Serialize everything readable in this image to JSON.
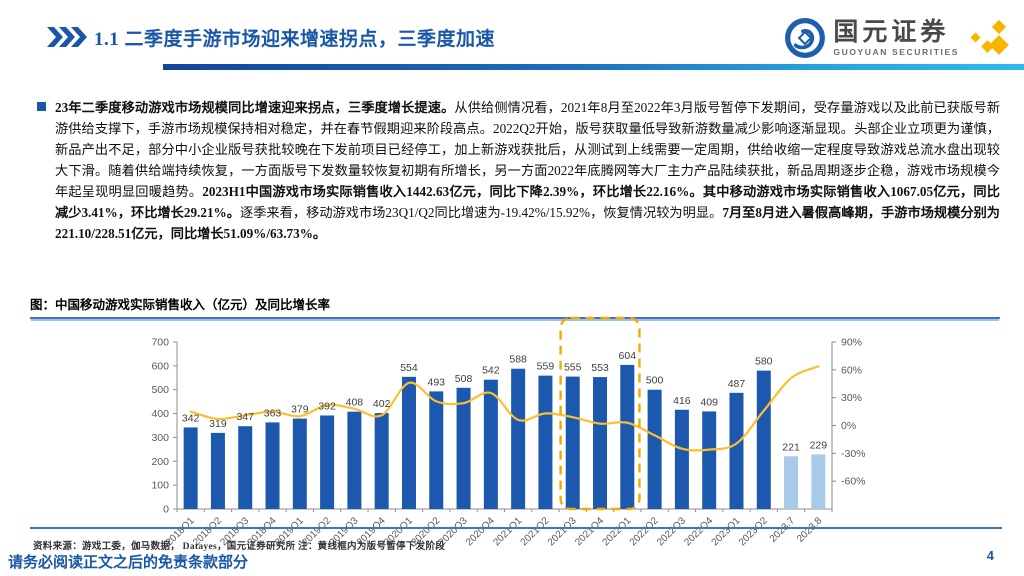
{
  "header": {
    "section_title": "1.1 二季度手游市场迎来增速拐点，三季度加速",
    "logo": {
      "cn": "国元证券",
      "en": "GUOYUAN SECURITIES"
    }
  },
  "body": {
    "paragraph_segments": [
      {
        "text": "23年二季度移动游戏市场规模同比增速迎来拐点，三季度增长提速。",
        "bold": true
      },
      {
        "text": "从供给侧情况看，2021年8月至2022年3月版号暂停下发期间，受存量游戏以及此前已获版号新游供给支撑下，手游市场规模保持相对稳定，并在春节假期迎来阶段高点。2022Q2开始，版号获取量低导致新游数量减少影响逐渐显现。头部企业立项更为谨慎，新品产出不足，部分中小企业版号获批较晚在下发前项目已经停工，加上新游戏获批后，从测试到上线需要一定周期，供给收缩一定程度导致游戏总流水盘出现较大下滑。随着供给端持续恢复，一方面版号下发数量较恢复初期有所增长，另一方面2022年底腾网等大厂主力产品陆续获批，新品周期逐步企稳，游戏市场规模今年起呈现明显回暖趋势。",
        "bold": false
      },
      {
        "text": "2023H1中国游戏市场实际销售收入1442.63亿元，同比下降2.39%，环比增长22.16%。其中移动游戏市场实际销售收入1067.05亿元，同比减少3.41%，环比增长29.21%。",
        "bold": true
      },
      {
        "text": "逐季来看，移动游戏市场23Q1/Q2同比增速为-19.42%/15.92%，恢复情况较为明显。",
        "bold": false
      },
      {
        "text": "7月至8月进入暑假高峰期，手游市场规模分别为221.10/228.51亿元，同比增长51.09%/63.73%。",
        "bold": true
      }
    ]
  },
  "chart": {
    "title": "图：中国移动游戏实际销售收入（亿元）及同比增长率"
  },
  "chart_data": {
    "type": "bar+line",
    "title": "中国移动游戏实际销售收入（亿元）及同比增长率",
    "categories": [
      "2018Q1",
      "2018Q2",
      "2018Q3",
      "2018Q4",
      "2019Q1",
      "2019Q2",
      "2019Q3",
      "2019Q4",
      "2020Q1",
      "2020Q2",
      "2020Q3",
      "2020Q4",
      "2021Q1",
      "2021Q2",
      "2021Q3",
      "2021Q4",
      "2022Q1",
      "2022Q2",
      "2022Q3",
      "2022Q4",
      "2023Q1",
      "2023Q2",
      "2023.7",
      "2023.8"
    ],
    "series": [
      {
        "name": "中国移动游戏实际销售收入（亿元）",
        "type": "bar",
        "values": [
          342,
          319,
          347,
          363,
          379,
          392,
          408,
          402,
          554,
          493,
          508,
          542,
          588,
          559,
          555,
          553,
          604,
          500,
          416,
          409,
          487,
          580,
          221,
          229
        ],
        "light_categories": [
          "2023.7",
          "2023.8"
        ]
      },
      {
        "name": "同比增长率",
        "type": "line",
        "values": [
          15,
          7,
          11,
          15,
          10,
          22,
          18,
          11,
          46,
          26,
          24,
          35,
          6,
          13,
          9,
          2,
          3,
          -10.6,
          -25,
          -26,
          -19.42,
          15.92,
          51.09,
          63.73
        ]
      }
    ],
    "left_axis": {
      "min": 0,
      "max": 700,
      "step": 100
    },
    "right_axis": {
      "min": -90,
      "max": 90,
      "step": 30,
      "label_min": -60,
      "format": "percent"
    },
    "highlight_box": {
      "from": "2021Q3",
      "to": "2022Q1",
      "meaning": "版号暂停下发阶段"
    },
    "grid": false,
    "legend": "none"
  },
  "footer": {
    "source": "资料来源：游戏工委，伽马数据， Datayes，国元证券研究所  注：黄线框内为版号暂停下发阶段",
    "disclaimer": "请务必阅读正文之后的免责条款部分",
    "page_number": "4"
  },
  "colors": {
    "accent_blue": "#1A57A8",
    "bar_blue": "#1B58AE",
    "bar_light_blue": "#A7C9EA",
    "line_gold": "#FCBF2E",
    "highlight_gold": "#F0AD00",
    "rule_blue": "#4472C4",
    "axis_gray": "#8C8C8C",
    "axis_text": "#595959",
    "value_label": "#404040",
    "logo_gold": "#F8B500"
  }
}
